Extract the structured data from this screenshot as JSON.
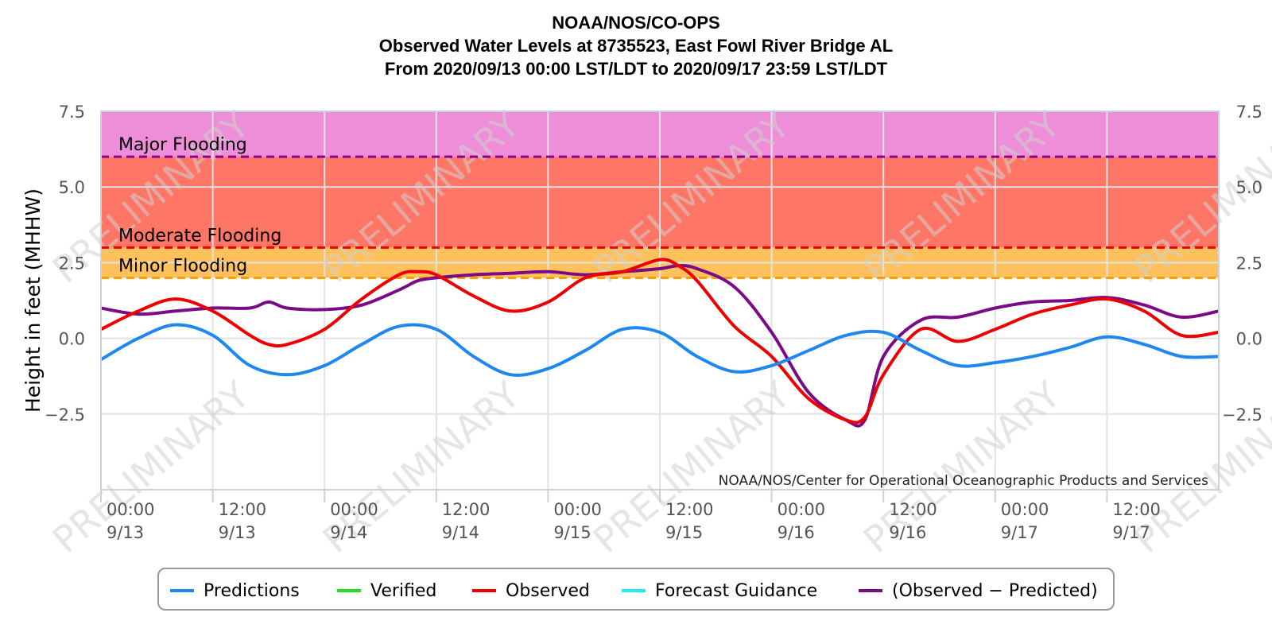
{
  "chart_data": {
    "type": "line",
    "title": [
      "NOAA/NOS/CO-OPS",
      "Observed Water Levels at 8735523, East Fowl River Bridge AL",
      "From 2020/09/13 00:00 LST/LDT to 2020/09/17 23:59 LST/LDT"
    ],
    "ylabel": "Height in feet (MHHW)",
    "ylim": [
      -5,
      7.5
    ],
    "y_ticks": [
      "7.5",
      "5.0",
      "2.5",
      "0.0",
      "−2.5"
    ],
    "y_tick_values": [
      7.5,
      5.0,
      2.5,
      0.0,
      -2.5
    ],
    "x_range_hours": [
      0,
      120
    ],
    "x_ticks": [
      {
        "time": "00:00",
        "date": "9/13",
        "hour": 0
      },
      {
        "time": "12:00",
        "date": "9/13",
        "hour": 12
      },
      {
        "time": "00:00",
        "date": "9/14",
        "hour": 24
      },
      {
        "time": "12:00",
        "date": "9/14",
        "hour": 36
      },
      {
        "time": "00:00",
        "date": "9/15",
        "hour": 48
      },
      {
        "time": "12:00",
        "date": "9/15",
        "hour": 60
      },
      {
        "time": "00:00",
        "date": "9/16",
        "hour": 72
      },
      {
        "time": "12:00",
        "date": "9/16",
        "hour": 84
      },
      {
        "time": "00:00",
        "date": "9/17",
        "hour": 96
      },
      {
        "time": "12:00",
        "date": "9/17",
        "hour": 108
      }
    ],
    "flood_bands": [
      {
        "label": "Major Flooding",
        "from": 6.0,
        "to": 7.5,
        "color": "#ee8ed8",
        "line_color": "#8b008b"
      },
      {
        "label": "Moderate Flooding",
        "from": 3.0,
        "to": 6.0,
        "color": "#ff7566",
        "line_color": "#ee0000"
      },
      {
        "label": "Minor Flooding",
        "from": 2.0,
        "to": 3.0,
        "color": "#ffc15c",
        "line_color": "#ff9d00"
      }
    ],
    "credit": "NOAA/NOS/Center for Operational Oceanographic Products and Services",
    "watermark": "PRELIMINARY",
    "series": [
      {
        "name": "Predictions",
        "color": "#1e88f0",
        "x": [
          0,
          4,
          8,
          12,
          16,
          20,
          24,
          28,
          32,
          36,
          40,
          44,
          48,
          52,
          56,
          60,
          64,
          68,
          72,
          76,
          80,
          84,
          88,
          92,
          96,
          100,
          104,
          108,
          112,
          116,
          120
        ],
        "values": [
          -0.7,
          0.0,
          0.45,
          0.1,
          -0.9,
          -1.2,
          -0.9,
          -0.2,
          0.4,
          0.3,
          -0.6,
          -1.2,
          -1.0,
          -0.4,
          0.3,
          0.2,
          -0.6,
          -1.1,
          -0.9,
          -0.4,
          0.1,
          0.2,
          -0.4,
          -0.9,
          -0.8,
          -0.6,
          -0.3,
          0.05,
          -0.2,
          -0.6,
          -0.6
        ]
      },
      {
        "name": "Verified",
        "color": "#22dd22",
        "x": [],
        "values": []
      },
      {
        "name": "Observed",
        "color": "#ee0000",
        "x": [
          0,
          4,
          8,
          12,
          16,
          18,
          20,
          24,
          28,
          32,
          34,
          36,
          40,
          44,
          48,
          52,
          56,
          60,
          62,
          64,
          68,
          72,
          76,
          80,
          82,
          84,
          88,
          92,
          96,
          100,
          104,
          108,
          112,
          116,
          120
        ],
        "values": [
          0.3,
          0.9,
          1.3,
          0.9,
          0.1,
          -0.2,
          -0.2,
          0.3,
          1.3,
          2.1,
          2.2,
          2.1,
          1.4,
          0.9,
          1.2,
          2.0,
          2.2,
          2.6,
          2.4,
          1.9,
          0.4,
          -0.6,
          -2.0,
          -2.7,
          -2.6,
          -1.2,
          0.3,
          -0.1,
          0.3,
          0.8,
          1.1,
          1.3,
          0.9,
          0.1,
          0.2
        ]
      },
      {
        "name": "Forecast Guidance",
        "color": "#22eeee",
        "x": [],
        "values": []
      },
      {
        "name": "(Observed - Predicted)",
        "color": "#7b0a87",
        "x": [
          0,
          4,
          8,
          12,
          16,
          18,
          20,
          24,
          28,
          32,
          34,
          36,
          40,
          44,
          48,
          52,
          56,
          60,
          62,
          64,
          68,
          72,
          76,
          80,
          82,
          84,
          88,
          92,
          96,
          100,
          104,
          108,
          112,
          116,
          120
        ],
        "values": [
          1.0,
          0.8,
          0.9,
          1.0,
          1.0,
          1.2,
          1.0,
          0.95,
          1.1,
          1.6,
          1.9,
          2.0,
          2.1,
          2.15,
          2.2,
          2.1,
          2.2,
          2.3,
          2.4,
          2.3,
          1.7,
          0.2,
          -1.8,
          -2.7,
          -2.7,
          -0.6,
          0.6,
          0.7,
          1.0,
          1.2,
          1.25,
          1.35,
          1.1,
          0.7,
          0.9
        ]
      }
    ],
    "legend_placement": "bottom-center",
    "grid": true
  },
  "legend": {
    "items": [
      {
        "label": "Predictions",
        "color": "#1e88f0"
      },
      {
        "label": "Verified",
        "color": "#22dd22"
      },
      {
        "label": "Observed",
        "color": "#ee0000"
      },
      {
        "label": "Forecast Guidance",
        "color": "#22eeee"
      },
      {
        "label": "(Observed − Predicted)",
        "color": "#7b0a87"
      }
    ]
  }
}
